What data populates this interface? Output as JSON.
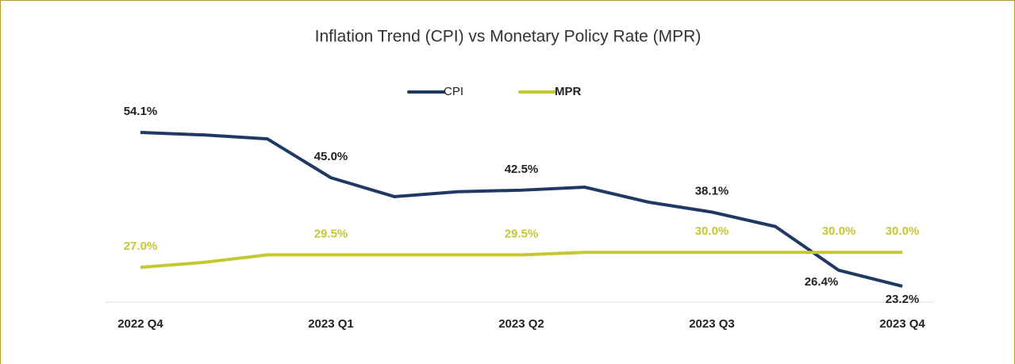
{
  "chart_data": {
    "type": "line",
    "title": "Inflation Trend (CPI) vs Monetary Policy Rate (MPR)",
    "categories": [
      "2022 Q4",
      null,
      null,
      "2023 Q1",
      null,
      null,
      "2023 Q2",
      null,
      null,
      "2023 Q3",
      null,
      null,
      "2023 Q4"
    ],
    "series": [
      {
        "name": "CPI",
        "color": "#1f3864",
        "values": [
          54.1,
          53.6,
          52.8,
          45.0,
          41.2,
          42.2,
          42.5,
          43.1,
          40.1,
          38.1,
          35.2,
          26.4,
          23.2
        ],
        "value_labels": [
          "54.1%",
          null,
          null,
          "45.0%",
          null,
          null,
          "42.5%",
          null,
          null,
          "38.1%",
          null,
          "26.4%",
          "23.2%"
        ]
      },
      {
        "name": "MPR",
        "color": "#c6c832",
        "values": [
          27.0,
          28.0,
          29.5,
          29.5,
          29.5,
          29.5,
          29.5,
          30.0,
          30.0,
          30.0,
          30.0,
          30.0,
          30.0
        ],
        "value_labels": [
          "27.0%",
          null,
          null,
          "29.5%",
          null,
          null,
          "29.5%",
          null,
          null,
          "30.0%",
          null,
          "30.0%",
          "30.0%"
        ]
      }
    ],
    "ylim": [
      20,
      60
    ],
    "legend": "top"
  }
}
